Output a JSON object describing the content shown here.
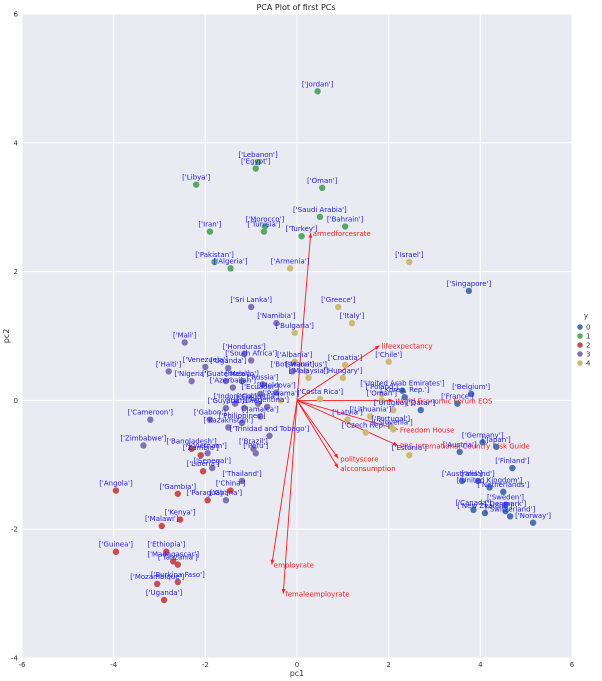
{
  "chart_data": {
    "type": "scatter",
    "title": "PCA Plot of first PCs",
    "xlabel": "pc1",
    "ylabel": "pc2",
    "xlim": [
      -6,
      6
    ],
    "ylim": [
      -4,
      6
    ],
    "xticks": [
      -6,
      -4,
      -2,
      0,
      2,
      4,
      6
    ],
    "yticks": [
      -4,
      -2,
      0,
      2,
      4,
      6
    ],
    "grid": true,
    "legend": {
      "title": "y",
      "position": "right",
      "entries": [
        {
          "label": "0",
          "color": "#4c72b0"
        },
        {
          "label": "1",
          "color": "#55a868"
        },
        {
          "label": "2",
          "color": "#c44e52"
        },
        {
          "label": "3",
          "color": "#8172b2"
        },
        {
          "label": "4",
          "color": "#ccb974"
        }
      ]
    },
    "colors": {
      "background": "#eaeaf2",
      "grid": "#ffffff",
      "point_label": "#1a1aff",
      "loading": "#ff1a1a"
    },
    "points": [
      {
        "label": "['Jordan']",
        "x": 0.45,
        "y": 4.8,
        "cluster": 1
      },
      {
        "label": "['Lebanon']",
        "x": -0.85,
        "y": 3.7,
        "cluster": 1
      },
      {
        "label": "['Egypt']",
        "x": -0.9,
        "y": 3.6,
        "cluster": 1
      },
      {
        "label": "['Libya']",
        "x": -2.2,
        "y": 3.35,
        "cluster": 1
      },
      {
        "label": "['Oman']",
        "x": 0.55,
        "y": 3.3,
        "cluster": 1
      },
      {
        "label": "['Saudi Arabia']",
        "x": 0.5,
        "y": 2.85,
        "cluster": 1
      },
      {
        "label": "['Bahrain']",
        "x": 1.05,
        "y": 2.7,
        "cluster": 1
      },
      {
        "label": "['Morocco']",
        "x": -0.7,
        "y": 2.7,
        "cluster": 1
      },
      {
        "label": "['Tunisia']",
        "x": -0.72,
        "y": 2.62,
        "cluster": 1
      },
      {
        "label": "['Iran']",
        "x": -1.9,
        "y": 2.62,
        "cluster": 1
      },
      {
        "label": "['Turkey']",
        "x": 0.1,
        "y": 2.55,
        "cluster": 1
      },
      {
        "label": "['Pakistan']",
        "x": -1.8,
        "y": 2.15,
        "cluster": 1
      },
      {
        "label": "['Algeria']",
        "x": -1.45,
        "y": 2.05,
        "cluster": 1
      },
      {
        "label": "['Armenia']",
        "x": -0.15,
        "y": 2.05,
        "cluster": 4
      },
      {
        "label": "['Israel']",
        "x": 2.45,
        "y": 2.15,
        "cluster": 4
      },
      {
        "label": "['Singapore']",
        "x": 3.75,
        "y": 1.7,
        "cluster": 0
      },
      {
        "label": "['Sri Lanka']",
        "x": -1.0,
        "y": 1.45,
        "cluster": 3
      },
      {
        "label": "['Greece']",
        "x": 0.9,
        "y": 1.45,
        "cluster": 4
      },
      {
        "label": "['Namibia']",
        "x": -0.45,
        "y": 1.2,
        "cluster": 3
      },
      {
        "label": "['Italy']",
        "x": 1.2,
        "y": 1.2,
        "cluster": 4
      },
      {
        "label": "['Bulgaria']",
        "x": -0.05,
        "y": 1.05,
        "cluster": 4
      },
      {
        "label": "['Mali']",
        "x": -2.45,
        "y": 0.9,
        "cluster": 3
      },
      {
        "label": "['Honduras']",
        "x": -1.15,
        "y": 0.72,
        "cluster": 3
      },
      {
        "label": "['South Africa']",
        "x": -1.0,
        "y": 0.62,
        "cluster": 3
      },
      {
        "label": "['Albania']",
        "x": -0.05,
        "y": 0.6,
        "cluster": 4
      },
      {
        "label": "['Chile']",
        "x": 2.0,
        "y": 0.6,
        "cluster": 4
      },
      {
        "label": "['Haiti']",
        "x": -2.8,
        "y": 0.45,
        "cluster": 3
      },
      {
        "label": "['Venezuela']",
        "x": -2.0,
        "y": 0.52,
        "cluster": 3
      },
      {
        "label": "['Uganda']",
        "x": -1.5,
        "y": 0.5,
        "cluster": 3
      },
      {
        "label": "['Croatia']",
        "x": 1.05,
        "y": 0.55,
        "cluster": 4
      },
      {
        "label": "['Botswana']",
        "x": -0.1,
        "y": 0.45,
        "cluster": 3
      },
      {
        "label": "['Mauritius']",
        "x": 0.2,
        "y": 0.45,
        "cluster": 4
      },
      {
        "label": "['Nigeria']",
        "x": -2.3,
        "y": 0.3,
        "cluster": 3
      },
      {
        "label": "['Malaysia']",
        "x": 0.25,
        "y": 0.35,
        "cluster": 4
      },
      {
        "label": "['Hungary']",
        "x": 1.0,
        "y": 0.35,
        "cluster": 4
      },
      {
        "label": "['Guatemala']",
        "x": -1.55,
        "y": 0.3,
        "cluster": 3
      },
      {
        "label": "['Mexico']",
        "x": -1.2,
        "y": 0.3,
        "cluster": 3
      },
      {
        "label": "['Azerbaijan']",
        "x": -1.4,
        "y": 0.2,
        "cluster": 3
      },
      {
        "label": "['Russia']",
        "x": -0.75,
        "y": 0.25,
        "cluster": 3
      },
      {
        "label": "['Ecuador']",
        "x": -0.8,
        "y": 0.1,
        "cluster": 3
      },
      {
        "label": "['Moldova']",
        "x": -0.45,
        "y": 0.12,
        "cluster": 3
      },
      {
        "label": "['United Arab Emirates']",
        "x": 2.3,
        "y": 0.15,
        "cluster": 0
      },
      {
        "label": "['Belgium']",
        "x": 3.8,
        "y": 0.1,
        "cluster": 0
      },
      {
        "label": "['Poland']",
        "x": 1.85,
        "y": 0.1,
        "cluster": 4
      },
      {
        "label": "['Korea, Rep.']",
        "x": 2.35,
        "y": 0.05,
        "cluster": 0
      },
      {
        "label": "['Panama']",
        "x": -0.35,
        "y": 0.0,
        "cluster": 4
      },
      {
        "label": "['Costa Rica']",
        "x": 0.5,
        "y": 0.02,
        "cluster": 4
      },
      {
        "label": "['Oman']",
        "x": 1.85,
        "y": 0.0,
        "cluster": 4
      },
      {
        "label": "['Indonesia']",
        "x": -1.35,
        "y": -0.05,
        "cluster": 3
      },
      {
        "label": "['Colombia']",
        "x": -0.85,
        "y": -0.05,
        "cluster": 3
      },
      {
        "label": "['France']",
        "x": 3.5,
        "y": -0.05,
        "cluster": 0
      },
      {
        "label": "['Guyana']",
        "x": -1.55,
        "y": -0.12,
        "cluster": 3
      },
      {
        "label": "['Ukraine']",
        "x": -1.15,
        "y": -0.12,
        "cluster": 3
      },
      {
        "label": "['Argentina']",
        "x": -0.65,
        "y": -0.1,
        "cluster": 3
      },
      {
        "label": "['Uruguay']",
        "x": 2.1,
        "y": -0.15,
        "cluster": 4
      },
      {
        "label": "['Qatar']",
        "x": 2.7,
        "y": -0.15,
        "cluster": 0
      },
      {
        "label": "['Cameroon']",
        "x": -3.2,
        "y": -0.3,
        "cluster": 3
      },
      {
        "label": "['Gabon']",
        "x": -1.9,
        "y": -0.3,
        "cluster": 3
      },
      {
        "label": "['Jamaica']",
        "x": -0.8,
        "y": -0.25,
        "cluster": 3
      },
      {
        "label": "['Lithuania']",
        "x": 1.6,
        "y": -0.25,
        "cluster": 4
      },
      {
        "label": "['Latvia']",
        "x": 1.1,
        "y": -0.3,
        "cluster": 4
      },
      {
        "label": "['Philippines']",
        "x": -1.2,
        "y": -0.35,
        "cluster": 3
      },
      {
        "label": "['Kazakhstan']",
        "x": -1.5,
        "y": -0.42,
        "cluster": 3
      },
      {
        "label": "['Portugal']",
        "x": 2.05,
        "y": -0.4,
        "cluster": 4
      },
      {
        "label": "['Slovenia']",
        "x": 2.1,
        "y": -0.45,
        "cluster": 4
      },
      {
        "label": "['Czech Rep.']",
        "x": 1.5,
        "y": -0.5,
        "cluster": 4
      },
      {
        "label": "['Germany']",
        "x": 4.05,
        "y": -0.65,
        "cluster": 0
      },
      {
        "label": "['Japan']",
        "x": 4.35,
        "y": -0.72,
        "cluster": 0
      },
      {
        "label": "['Trinidad and Tobago']",
        "x": -0.6,
        "y": -0.55,
        "cluster": 3
      },
      {
        "label": "['Zimbabwe']",
        "x": -3.35,
        "y": -0.7,
        "cluster": 3
      },
      {
        "label": "['Bangladesh']",
        "x": -2.3,
        "y": -0.75,
        "cluster": 2
      },
      {
        "label": "['Brazil']",
        "x": -0.95,
        "y": -0.75,
        "cluster": 3
      },
      {
        "label": "['Peru']",
        "x": -0.9,
        "y": -0.82,
        "cluster": 3
      },
      {
        "label": "['Zambia']",
        "x": -2.1,
        "y": -0.85,
        "cluster": 2
      },
      {
        "label": "['Vietnam']",
        "x": -1.95,
        "y": -0.82,
        "cluster": 3
      },
      {
        "label": "['Austria']",
        "x": 3.55,
        "y": -0.8,
        "cluster": 0
      },
      {
        "label": "['Estonia']",
        "x": 2.45,
        "y": -0.85,
        "cluster": 4
      },
      {
        "label": "['Finland']",
        "x": 4.7,
        "y": -1.05,
        "cluster": 0
      },
      {
        "label": "['Senegal']",
        "x": -1.85,
        "y": -1.05,
        "cluster": 3
      },
      {
        "label": "['Liberia']",
        "x": -2.05,
        "y": -1.1,
        "cluster": 2
      },
      {
        "label": "['Thailand']",
        "x": -1.2,
        "y": -1.25,
        "cluster": 3
      },
      {
        "label": "['Angola']",
        "x": -3.95,
        "y": -1.4,
        "cluster": 2
      },
      {
        "label": "['Gambia']",
        "x": -2.6,
        "y": -1.45,
        "cluster": 2
      },
      {
        "label": "['China']",
        "x": -1.45,
        "y": -1.4,
        "cluster": 2
      },
      {
        "label": "['Australia']",
        "x": 3.6,
        "y": -1.25,
        "cluster": 0
      },
      {
        "label": "['Ireland']",
        "x": 3.95,
        "y": -1.25,
        "cluster": 0
      },
      {
        "label": "['United Kingdom']",
        "x": 4.2,
        "y": -1.35,
        "cluster": 0
      },
      {
        "label": "['Netherlands']",
        "x": 4.5,
        "y": -1.42,
        "cluster": 0
      },
      {
        "label": "['Paraguay']",
        "x": -1.95,
        "y": -1.55,
        "cluster": 2
      },
      {
        "label": "['Ghana']",
        "x": -1.55,
        "y": -1.55,
        "cluster": 3
      },
      {
        "label": "['Sweden']",
        "x": 4.55,
        "y": -1.62,
        "cluster": 0
      },
      {
        "label": "['Denmark']",
        "x": 4.55,
        "y": -1.72,
        "cluster": 0
      },
      {
        "label": "['Canada']",
        "x": 3.85,
        "y": -1.7,
        "cluster": 0
      },
      {
        "label": "['New Zealand']",
        "x": 4.1,
        "y": -1.75,
        "cluster": 0
      },
      {
        "label": "['Switzerland']",
        "x": 4.65,
        "y": -1.8,
        "cluster": 0
      },
      {
        "label": "['Norway']",
        "x": 5.15,
        "y": -1.9,
        "cluster": 0
      },
      {
        "label": "['Kenya']",
        "x": -2.55,
        "y": -1.85,
        "cluster": 2
      },
      {
        "label": "['Malawi']",
        "x": -2.95,
        "y": -1.95,
        "cluster": 2
      },
      {
        "label": "['Ethiopia']",
        "x": -2.85,
        "y": -2.35,
        "cluster": 2
      },
      {
        "label": "['Madagascar']",
        "x": -2.7,
        "y": -2.5,
        "cluster": 2
      },
      {
        "label": "['Guinea']",
        "x": -3.95,
        "y": -2.35,
        "cluster": 2
      },
      {
        "label": "['Tanzania']",
        "x": -2.6,
        "y": -2.55,
        "cluster": 2
      },
      {
        "label": "['Burkina Faso']",
        "x": -2.6,
        "y": -2.82,
        "cluster": 2
      },
      {
        "label": "['Mozambique']",
        "x": -3.05,
        "y": -2.85,
        "cluster": 2
      },
      {
        "label": "['Uganda']",
        "x": -2.9,
        "y": -3.1,
        "cluster": 2
      }
    ],
    "loadings": [
      {
        "label": "armedforcesrate",
        "x": 0.3,
        "y": 2.6
      },
      {
        "label": "lifeexpectancy",
        "x": 1.8,
        "y": 0.85
      },
      {
        "label": "World Economic Forum EOS",
        "x": 2.1,
        "y": 0.0
      },
      {
        "label": "Freedom House",
        "x": 2.2,
        "y": -0.45
      },
      {
        "label": "PRS International Country Risk Guide",
        "x": 2.2,
        "y": -0.7
      },
      {
        "label": "polityscore",
        "x": 0.9,
        "y": -0.9
      },
      {
        "label": "alcconsumption",
        "x": 0.9,
        "y": -1.05
      },
      {
        "label": "employrate",
        "x": -0.55,
        "y": -2.55
      },
      {
        "label": "femaleemployrate",
        "x": -0.3,
        "y": -3.0
      }
    ]
  }
}
